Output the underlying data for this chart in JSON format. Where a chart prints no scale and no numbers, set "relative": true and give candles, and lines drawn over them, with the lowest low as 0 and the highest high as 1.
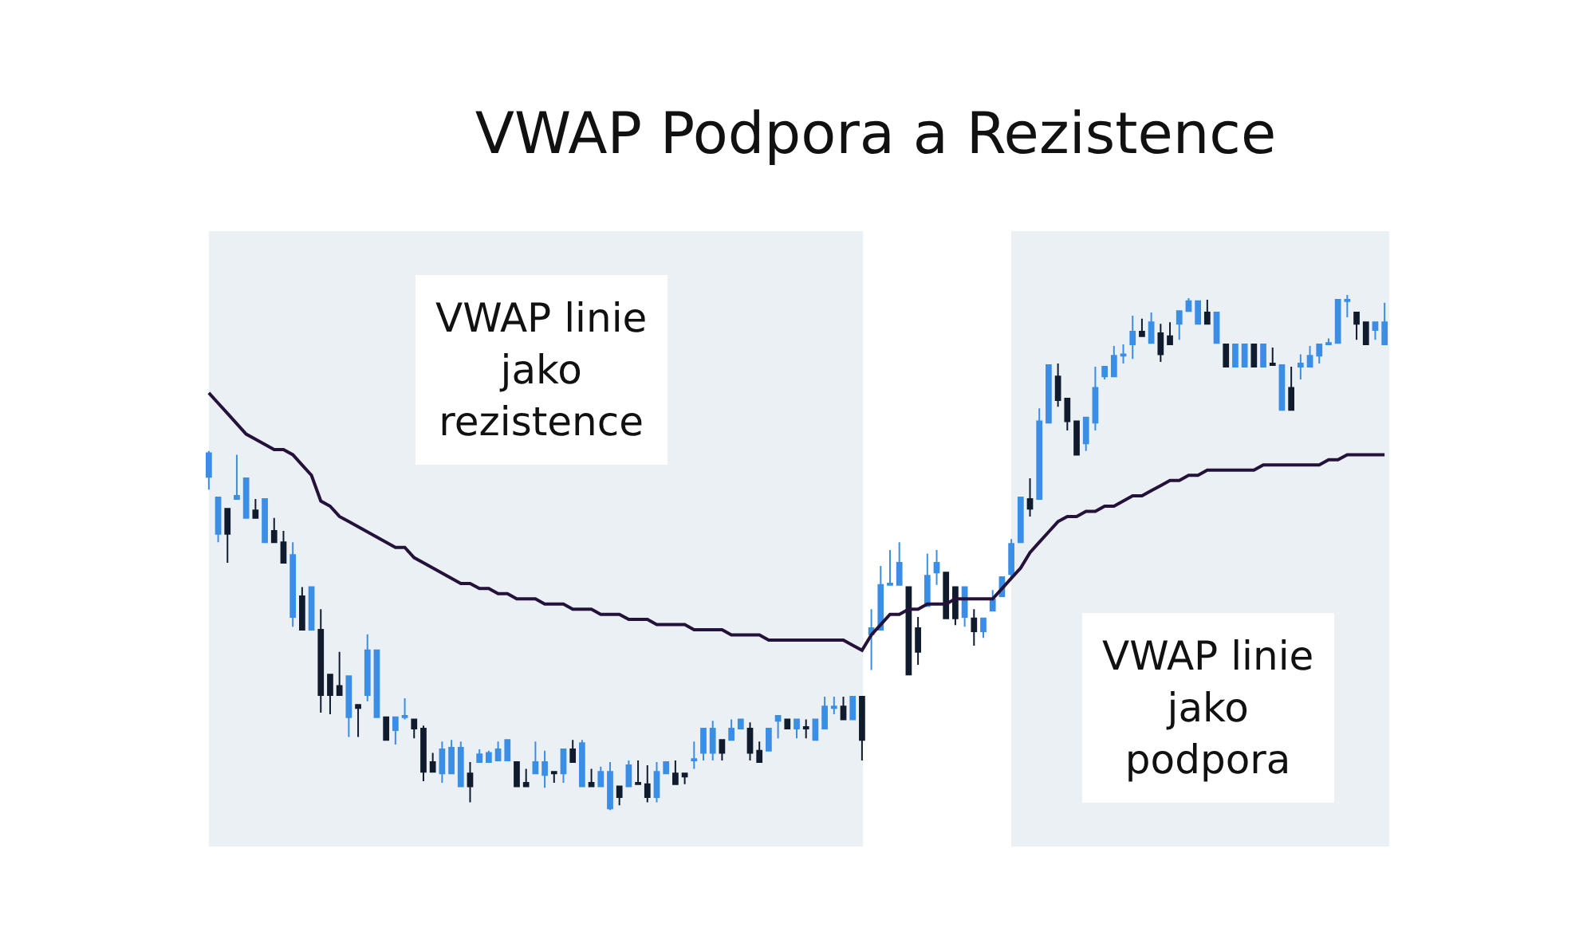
{
  "chart_data": {
    "type": "candlestick",
    "title": "VWAP Podpora a Rezistence",
    "relative": true,
    "categories": [
      null,
      null,
      null,
      null,
      null,
      null,
      null,
      null,
      null,
      null,
      null,
      null,
      null,
      null,
      null,
      null,
      null,
      null,
      null,
      null,
      null,
      null,
      null,
      null,
      null,
      null,
      null,
      null,
      null,
      null,
      null,
      null,
      null,
      null,
      null,
      null,
      null,
      null,
      null,
      null,
      null,
      null,
      null,
      null,
      null,
      null,
      null,
      null,
      null,
      null,
      null,
      null,
      null,
      null,
      null,
      null,
      null,
      null,
      null,
      null,
      null,
      null,
      null,
      null,
      null,
      null,
      null,
      null,
      null,
      null,
      null,
      null,
      null,
      null,
      null,
      null,
      null,
      null,
      null,
      null,
      null,
      null,
      null,
      null,
      null,
      null,
      null,
      null,
      null,
      null,
      null,
      null,
      null,
      null,
      null,
      null,
      null,
      null,
      null,
      null,
      null,
      null,
      null,
      null,
      null,
      null,
      null,
      null,
      null,
      null,
      null,
      null,
      null,
      null,
      null,
      null,
      null,
      null,
      null,
      null,
      null,
      null,
      null,
      null,
      null,
      null,
      null
    ],
    "colors": [
      "#3a8ee6",
      "#3a8ee6",
      "#101c2e",
      "#3a8ee6",
      "#3a8ee6",
      "#101c2e",
      "#3a8ee6",
      "#101c2e",
      "#101c2e",
      "#3a8ee6",
      "#101c2e",
      "#3a8ee6",
      "#101c2e",
      "#101c2e",
      "#101c2e",
      "#3a8ee6",
      "#101c2e",
      "#3a8ee6",
      "#3a8ee6",
      "#101c2e",
      "#3a8ee6",
      "#3a8ee6",
      "#101c2e",
      "#101c2e",
      "#101c2e",
      "#3a8ee6",
      "#3a8ee6",
      "#3a8ee6",
      "#101c2e",
      "#3a8ee6",
      "#3a8ee6",
      "#3a8ee6",
      "#3a8ee6",
      "#101c2e",
      "#101c2e",
      "#3a8ee6",
      "#3a8ee6",
      "#101c2e",
      "#3a8ee6",
      "#101c2e",
      "#3a8ee6",
      "#101c2e",
      "#3a8ee6",
      "#3a8ee6",
      "#101c2e",
      "#3a8ee6",
      "#101c2e",
      "#101c2e",
      "#3a8ee6",
      "#3a8ee6",
      "#101c2e",
      "#101c2e",
      "#3a8ee6",
      "#3a8ee6",
      "#3a8ee6",
      "#101c2e",
      "#3a8ee6",
      "#3a8ee6",
      "#101c2e",
      "#101c2e",
      "#3a8ee6",
      "#3a8ee6",
      "#101c2e",
      "#3a8ee6",
      "#101c2e",
      "#3a8ee6",
      "#3a8ee6",
      "#3a8ee6",
      "#101c2e",
      "#3a8ee6",
      "#101c2e",
      "#3a8ee6",
      "#3a8ee6",
      "#3a8ee6",
      "#3a8ee6",
      "#101c2e",
      "#101c2e",
      "#3a8ee6",
      "#3a8ee6",
      "#101c2e",
      "#101c2e",
      "#3a8ee6",
      "#101c2e",
      "#3a8ee6",
      "#3a8ee6",
      "#3a8ee6",
      "#3a8ee6",
      "#3a8ee6",
      "#101c2e",
      "#3a8ee6",
      "#3a8ee6",
      "#101c2e",
      "#101c2e",
      "#101c2e",
      "#3a8ee6",
      "#3a8ee6",
      "#3a8ee6",
      "#3a8ee6",
      "#3a8ee6",
      "#3a8ee6",
      "#101c2e",
      "#3a8ee6",
      "#101c2e",
      "#101c2e",
      "#3a8ee6",
      "#3a8ee6",
      "#3a8ee6",
      "#101c2e",
      "#3a8ee6",
      "#101c2e",
      "#3a8ee6",
      "#3a8ee6",
      "#101c2e",
      "#3a8ee6",
      "#101c2e",
      "#3a8ee6",
      "#101c2e",
      "#3a8ee6",
      "#3a8ee6",
      "#3a8ee6",
      "#3a8ee6",
      "#3a8ee6",
      "#3a8ee6",
      "#101c2e",
      "#101c2e",
      "#3a8ee6",
      "#3a8ee6"
    ],
    "ohlc": [
      [
        0.647,
        0.697,
        0.622,
        0.693
      ],
      [
        0.536,
        0.607,
        0.52,
        0.607
      ],
      [
        0.585,
        0.585,
        0.48,
        0.536
      ],
      [
        0.604,
        0.69,
        0.604,
        0.61
      ],
      [
        0.567,
        0.644,
        0.567,
        0.644
      ],
      [
        0.582,
        0.604,
        0.567,
        0.567
      ],
      [
        0.52,
        0.604,
        0.52,
        0.604
      ],
      [
        0.542,
        0.567,
        0.52,
        0.52
      ],
      [
        0.52,
        0.542,
        0.48,
        0.48
      ],
      [
        0.375,
        0.52,
        0.356,
        0.495
      ],
      [
        0.415,
        0.433,
        0.35,
        0.35
      ],
      [
        0.35,
        0.433,
        0.35,
        0.433
      ],
      [
        0.35,
        0.39,
        0.189,
        0.223
      ],
      [
        0.263,
        0.263,
        0.186,
        0.223
      ],
      [
        0.241,
        0.307,
        0.223,
        0.223
      ],
      [
        0.18,
        0.26,
        0.142,
        0.26
      ],
      [
        0.204,
        0.204,
        0.142,
        0.198
      ],
      [
        0.223,
        0.341,
        0.211,
        0.31
      ],
      [
        0.18,
        0.31,
        0.18,
        0.31
      ],
      [
        0.18,
        0.18,
        0.136,
        0.136
      ],
      [
        0.155,
        0.18,
        0.127,
        0.18
      ],
      [
        0.18,
        0.217,
        0.176,
        0.183
      ],
      [
        0.176,
        0.176,
        0.139,
        0.158
      ],
      [
        0.158,
        0.164,
        0.056,
        0.074
      ],
      [
        0.093,
        0.111,
        0.074,
        0.074
      ],
      [
        0.071,
        0.133,
        0.053,
        0.118
      ],
      [
        0.071,
        0.136,
        0.071,
        0.121
      ],
      [
        0.046,
        0.133,
        0.046,
        0.121
      ],
      [
        0.071,
        0.093,
        0.015,
        0.046
      ],
      [
        0.093,
        0.118,
        0.093,
        0.108
      ],
      [
        0.093,
        0.115,
        0.093,
        0.111
      ],
      [
        0.096,
        0.133,
        0.096,
        0.118
      ],
      [
        0.096,
        0.136,
        0.096,
        0.136
      ],
      [
        0.093,
        0.093,
        0.046,
        0.046
      ],
      [
        0.053,
        0.08,
        0.046,
        0.046
      ],
      [
        0.071,
        0.133,
        0.071,
        0.093
      ],
      [
        0.068,
        0.115,
        0.043,
        0.093
      ],
      [
        0.074,
        0.074,
        0.053,
        0.071
      ],
      [
        0.071,
        0.118,
        0.053,
        0.118
      ],
      [
        0.118,
        0.136,
        0.093,
        0.093
      ],
      [
        0.046,
        0.136,
        0.046,
        0.13
      ],
      [
        0.053,
        0.08,
        0.046,
        0.046
      ],
      [
        0.046,
        0.084,
        0.046,
        0.074
      ],
      [
        0.003,
        0.093,
        0,
        0.074
      ],
      [
        0.046,
        0.046,
        0.009,
        0.025
      ],
      [
        0.046,
        0.096,
        0.046,
        0.087
      ],
      [
        0.053,
        0.096,
        0.05,
        0.05
      ],
      [
        0.05,
        0.087,
        0.015,
        0.025
      ],
      [
        0.025,
        0.093,
        0.015,
        0.074
      ],
      [
        0.071,
        0.093,
        0.071,
        0.093
      ],
      [
        0.071,
        0.096,
        0.05,
        0.05
      ],
      [
        0.071,
        0.071,
        0.05,
        0.065
      ],
      [
        0.096,
        0.133,
        0.08,
        0.099
      ],
      [
        0.111,
        0.158,
        0.096,
        0.158
      ],
      [
        0.111,
        0.173,
        0.096,
        0.158
      ],
      [
        0.136,
        0.136,
        0.096,
        0.111
      ],
      [
        0.136,
        0.176,
        0.136,
        0.158
      ],
      [
        0.158,
        0.176,
        0.158,
        0.176
      ],
      [
        0.158,
        0.17,
        0.096,
        0.111
      ],
      [
        0.115,
        0.133,
        0.093,
        0.093
      ],
      [
        0.115,
        0.158,
        0.115,
        0.158
      ],
      [
        0.173,
        0.183,
        0.139,
        0.183
      ],
      [
        0.176,
        0.176,
        0.158,
        0.158
      ],
      [
        0.158,
        0.176,
        0.139,
        0.176
      ],
      [
        0.161,
        0.176,
        0.139,
        0.158
      ],
      [
        0.136,
        0.176,
        0.136,
        0.176
      ],
      [
        0.158,
        0.22,
        0.158,
        0.201
      ],
      [
        0.198,
        0.22,
        0.186,
        0.201
      ],
      [
        0.201,
        0.22,
        0.176,
        0.176
      ],
      [
        0.176,
        0.22,
        0.176,
        0.22
      ],
      [
        0.22,
        0.22,
        0.096,
        0.136
      ],
      [
        0.341,
        0.39,
        0.272,
        0.353
      ],
      [
        0.35,
        0.474,
        0.35,
        0.437
      ],
      [
        0.437,
        0.505,
        0.437,
        0.44
      ],
      [
        0.437,
        0.52,
        0.437,
        0.48
      ],
      [
        0.433,
        0.433,
        0.263,
        0.263
      ],
      [
        0.353,
        0.375,
        0.282,
        0.307
      ],
      [
        0.396,
        0.498,
        0.396,
        0.455
      ],
      [
        0.461,
        0.505,
        0.437,
        0.48
      ],
      [
        0.461,
        0.461,
        0.372,
        0.372
      ],
      [
        0.433,
        0.433,
        0.359,
        0.372
      ],
      [
        0.375,
        0.433,
        0.356,
        0.433
      ],
      [
        0.372,
        0.39,
        0.319,
        0.347
      ],
      [
        0.347,
        0.372,
        0.334,
        0.372
      ],
      [
        0.387,
        0.427,
        0.387,
        0.409
      ],
      [
        0.415,
        0.452,
        0.415,
        0.452
      ],
      [
        0.458,
        0.526,
        0.452,
        0.517
      ],
      [
        0.52,
        0.607,
        0.52,
        0.607
      ],
      [
        0.604,
        0.644,
        0.57,
        0.585
      ],
      [
        0.604,
        0.78,
        0.604,
        0.755
      ],
      [
        0.752,
        0.864,
        0.752,
        0.864
      ],
      [
        0.842,
        0.867,
        0.783,
        0.796
      ],
      [
        0.799,
        0.799,
        0.737,
        0.755
      ],
      [
        0.755,
        0.755,
        0.69,
        0.69
      ],
      [
        0.712,
        0.762,
        0.697,
        0.762
      ],
      [
        0.752,
        0.861,
        0.737,
        0.82
      ],
      [
        0.842,
        0.861,
        0.836,
        0.861
      ],
      [
        0.842,
        0.901,
        0.842,
        0.882
      ],
      [
        0.882,
        0.904,
        0.867,
        0.885
      ],
      [
        0.904,
        0.96,
        0.876,
        0.929
      ],
      [
        0.929,
        0.954,
        0.92,
        0.92
      ],
      [
        0.907,
        0.966,
        0.907,
        0.947
      ],
      [
        0.926,
        0.944,
        0.87,
        0.885
      ],
      [
        0.92,
        0.947,
        0.904,
        0.904
      ],
      [
        0.944,
        0.969,
        0.913,
        0.969
      ],
      [
        0.969,
        0.994,
        0.969,
        0.988
      ],
      [
        0.944,
        0.988,
        0.944,
        0.988
      ],
      [
        0.966,
        0.991,
        0.944,
        0.944
      ],
      [
        0.907,
        0.966,
        0.907,
        0.966
      ],
      [
        0.904,
        0.904,
        0.861,
        0.861
      ],
      [
        0.861,
        0.904,
        0.861,
        0.904
      ],
      [
        0.861,
        0.904,
        0.861,
        0.904
      ],
      [
        0.904,
        0.904,
        0.861,
        0.861
      ],
      [
        0.861,
        0.904,
        0.861,
        0.904
      ],
      [
        0.867,
        0.898,
        0.864,
        0.864
      ],
      [
        0.777,
        0.864,
        0.777,
        0.864
      ],
      [
        0.82,
        0.861,
        0.777,
        0.777
      ],
      [
        0.861,
        0.885,
        0.836,
        0.867
      ],
      [
        0.861,
        0.901,
        0.861,
        0.882
      ],
      [
        0.882,
        0.904,
        0.867,
        0.904
      ],
      [
        0.904,
        0.916,
        0.904,
        0.907
      ],
      [
        0.907,
        0.991,
        0.907,
        0.991
      ],
      [
        0.988,
        1,
        0.957,
        0.991
      ],
      [
        0.966,
        0.966,
        0.913,
        0.944
      ],
      [
        0.947,
        0.947,
        0.904,
        0.904
      ],
      [
        0.932,
        0.947,
        0.913,
        0.947
      ],
      [
        0.904,
        0.985,
        0.904,
        0.947
      ]
    ],
    "series": [
      {
        "type": "line",
        "color": "#24123a",
        "values": [
          0.81,
          0.79,
          0.77,
          0.75,
          0.73,
          0.72,
          0.71,
          0.7,
          0.7,
          0.69,
          0.67,
          0.65,
          0.6,
          0.59,
          0.57,
          0.56,
          0.55,
          0.54,
          0.53,
          0.52,
          0.51,
          0.51,
          0.49,
          0.48,
          0.47,
          0.46,
          0.45,
          0.44,
          0.44,
          0.43,
          0.43,
          0.42,
          0.42,
          0.41,
          0.41,
          0.41,
          0.4,
          0.4,
          0.4,
          0.39,
          0.39,
          0.39,
          0.38,
          0.38,
          0.38,
          0.37,
          0.37,
          0.37,
          0.36,
          0.36,
          0.36,
          0.36,
          0.35,
          0.35,
          0.35,
          0.35,
          0.34,
          0.34,
          0.34,
          0.34,
          0.33,
          0.33,
          0.33,
          0.33,
          0.33,
          0.33,
          0.33,
          0.33,
          0.33,
          0.32,
          0.31,
          0.34,
          0.36,
          0.38,
          0.38,
          0.39,
          0.39,
          0.4,
          0.4,
          0.4,
          0.41,
          0.41,
          0.41,
          0.41,
          0.41,
          0.43,
          0.45,
          0.47,
          0.5,
          0.52,
          0.54,
          0.56,
          0.57,
          0.57,
          0.58,
          0.58,
          0.59,
          0.59,
          0.6,
          0.61,
          0.61,
          0.62,
          0.63,
          0.64,
          0.64,
          0.65,
          0.65,
          0.66,
          0.66,
          0.66,
          0.66,
          0.66,
          0.66,
          0.67,
          0.67,
          0.67,
          0.67,
          0.67,
          0.67,
          0.67,
          0.68,
          0.68,
          0.69,
          0.69,
          0.69,
          0.69,
          0.69
        ]
      }
    ],
    "annotations": [
      "VWAP linie\njako\nrezistence",
      "VWAP linie\njako\npodpora"
    ]
  }
}
